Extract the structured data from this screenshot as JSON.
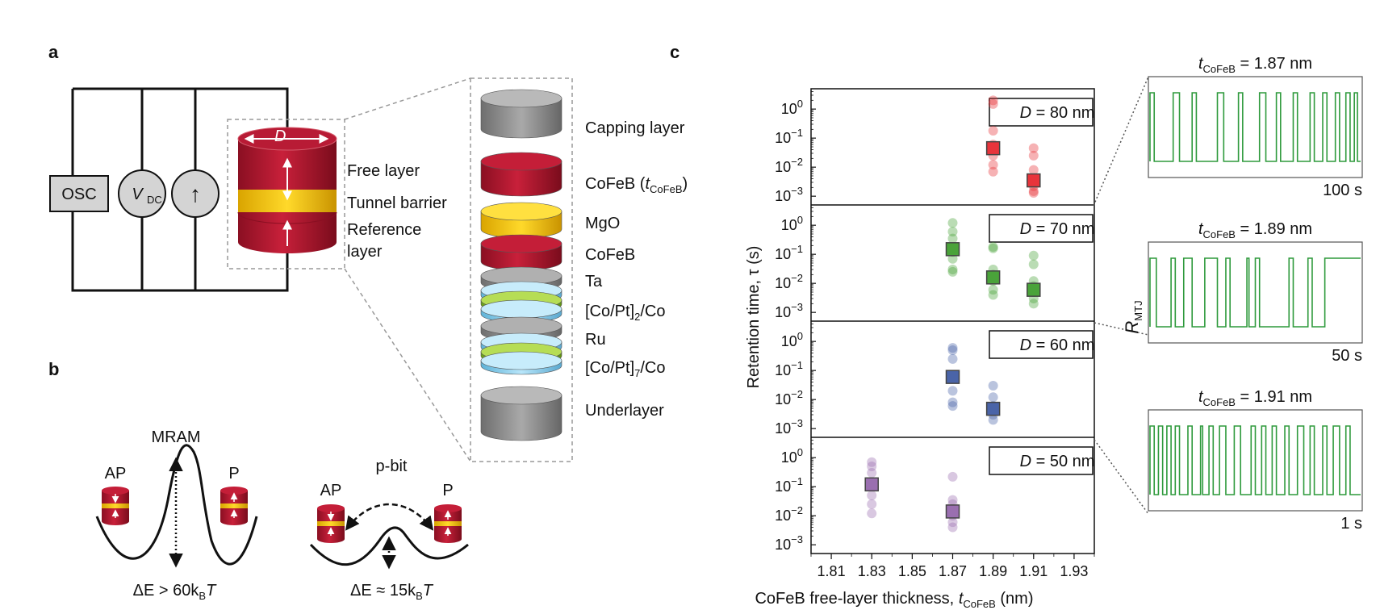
{
  "panel_letters": {
    "a": "a",
    "b": "b",
    "c": "c"
  },
  "panel_a": {
    "osc": "OSC",
    "vdc_main": "V",
    "vdc_sub": "DC",
    "current_source_symbol": "↑",
    "diameter_label": "D",
    "free_layer": "Free layer",
    "tunnel_barrier": "Tunnel barrier",
    "reference_layer_1": "Reference",
    "reference_layer_2": "layer",
    "stack_labels": {
      "capping": "Capping layer",
      "cofeb_t_prefix": "CoFeB (",
      "cofeb_t_var": "t",
      "cofeb_t_sub": "CoFeB",
      "cofeb_t_suffix": ")",
      "mgo": "MgO",
      "cofeb": "CoFeB",
      "ta": "Ta",
      "copt2_prefix": "[Co/Pt]",
      "copt2_sub": "2",
      "copt2_suffix": "/Co",
      "ru": "Ru",
      "copt7_prefix": "[Co/Pt]",
      "copt7_sub": "7",
      "copt7_suffix": "/Co",
      "underlayer": "Underlayer"
    }
  },
  "panel_b": {
    "mram_title": "MRAM",
    "mram_ap": "AP",
    "mram_p": "P",
    "mram_energy_prefix": "ΔE > 60k",
    "mram_energy_sub": "B",
    "mram_energy_suffix": "T",
    "pbit_title": "p-bit",
    "pbit_ap": "AP",
    "pbit_p": "P",
    "pbit_energy_prefix": "ΔE ≈ 15k",
    "pbit_energy_sub": "B",
    "pbit_energy_suffix": "T"
  },
  "panel_c": {
    "ylabel": "Retention time, τ (s)",
    "xlabel_prefix": "CoFeB free-layer thickness, ",
    "xlabel_var": "t",
    "xlabel_sub": "CoFeB",
    "xlabel_suffix": " (nm)",
    "rmtj_main": "R",
    "rmtj_sub": "MTJ",
    "colors": {
      "80": "#e8343b",
      "70": "#4aa33a",
      "60": "#4a64a8",
      "50": "#9a6fb0",
      "trace": "#2e9a3c"
    }
  },
  "chart_data": {
    "type": "scatter",
    "x_ticks": [
      "1.81",
      "1.83",
      "1.85",
      "1.87",
      "1.89",
      "1.91",
      "1.93"
    ],
    "xlim": [
      1.8,
      1.94
    ],
    "ylog": true,
    "ylim": [
      0.0005,
      5
    ],
    "y_ticks": [
      "10^0",
      "10^-1",
      "10^-2",
      "10^-3"
    ],
    "panels": [
      {
        "label_prefix": "D = ",
        "label_suffix": "80 nm",
        "color": "#e8343b",
        "points": [
          {
            "x": 1.89,
            "y": [
              2.0,
              1.5,
              0.18,
              0.06,
              0.025,
              0.012,
              0.007
            ],
            "mean": 0.045
          },
          {
            "x": 1.91,
            "y": [
              0.045,
              0.025,
              0.008,
              0.003,
              0.0022,
              0.0015,
              0.0013
            ],
            "mean": 0.0035
          }
        ]
      },
      {
        "label_prefix": "D = ",
        "label_suffix": "70 nm",
        "color": "#4aa33a",
        "points": [
          {
            "x": 1.87,
            "y": [
              1.2,
              0.6,
              0.35,
              0.12,
              0.07,
              0.03,
              0.025
            ],
            "mean": 0.15
          },
          {
            "x": 1.89,
            "y": [
              0.18,
              0.16,
              0.03,
              0.02,
              0.012,
              0.006,
              0.004
            ],
            "mean": 0.016
          },
          {
            "x": 1.91,
            "y": [
              0.09,
              0.045,
              0.012,
              0.008,
              0.005,
              0.003,
              0.002
            ],
            "mean": 0.006
          }
        ]
      },
      {
        "label_prefix": "D = ",
        "label_suffix": "60 nm",
        "color": "#4a64a8",
        "points": [
          {
            "x": 1.87,
            "y": [
              0.6,
              0.5,
              0.25,
              0.06,
              0.02,
              0.008,
              0.006
            ],
            "mean": 0.06
          },
          {
            "x": 1.89,
            "y": [
              0.03,
              0.012,
              0.006,
              0.004,
              0.003,
              0.002
            ],
            "mean": 0.0048
          }
        ]
      },
      {
        "label_prefix": "D = ",
        "label_suffix": "50 nm",
        "color": "#9a6fb0",
        "points": [
          {
            "x": 1.83,
            "y": [
              0.7,
              0.5,
              0.3,
              0.12,
              0.05,
              0.025,
              0.012
            ],
            "mean": 0.12
          },
          {
            "x": 1.87,
            "y": [
              0.22,
              0.035,
              0.025,
              0.015,
              0.01,
              0.006,
              0.004
            ],
            "mean": 0.014
          }
        ]
      }
    ],
    "traces": [
      {
        "title_var": "t",
        "title_sub": "CoFeB",
        "title_value": " = 1.87 nm",
        "time_label": "100 s",
        "transitions": [
          0,
          0.02,
          0.11,
          0.14,
          0.2,
          0.22,
          0.32,
          0.35,
          0.42,
          0.44,
          0.52,
          0.55,
          0.6,
          0.62,
          0.68,
          0.7,
          0.76,
          0.78,
          0.82,
          0.84,
          0.88,
          0.9,
          0.93,
          0.95,
          0.97,
          0.985
        ]
      },
      {
        "title_var": "t",
        "title_sub": "CoFeB",
        "title_value": " = 1.89 nm",
        "time_label": "50 s",
        "transitions": [
          0,
          0.03,
          0.1,
          0.12,
          0.16,
          0.2,
          0.26,
          0.32,
          0.36,
          0.38,
          0.46,
          0.47,
          0.5,
          0.52,
          0.66,
          0.68,
          0.75,
          0.77,
          0.83
        ]
      },
      {
        "title_var": "t",
        "title_sub": "CoFeB",
        "title_value": " = 1.91 nm",
        "time_label": "1 s",
        "transitions": [
          0,
          0.02,
          0.04,
          0.06,
          0.08,
          0.1,
          0.12,
          0.14,
          0.18,
          0.2,
          0.24,
          0.25,
          0.28,
          0.3,
          0.33,
          0.36,
          0.4,
          0.43,
          0.48,
          0.5,
          0.53,
          0.55,
          0.58,
          0.6,
          0.64,
          0.66,
          0.7,
          0.73,
          0.76,
          0.78,
          0.82,
          0.84,
          0.87,
          0.9,
          0.93,
          0.95
        ]
      }
    ]
  }
}
